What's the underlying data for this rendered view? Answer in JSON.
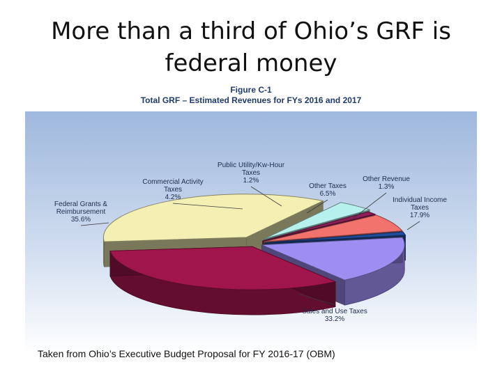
{
  "slide": {
    "title_line1": "More than a third of Ohio’s GRF is",
    "title_line2": "federal money",
    "caption": "Taken from Ohio’s Executive Budget Proposal for FY 2016-17 (OBM)"
  },
  "chart_data": {
    "type": "pie",
    "figure_label": "Figure C-1",
    "title": "Total GRF – Estimated Revenues for FYs 2016 and 2017",
    "unit": "%",
    "slices": [
      {
        "lines": [
          "Individual Income",
          "Taxes"
        ],
        "value": 17.9,
        "label": "17.9%",
        "color": "#9e8ef2"
      },
      {
        "lines": [
          "Sales and Use Taxes"
        ],
        "value": 33.2,
        "label": "33.2%",
        "color": "#a0154c"
      },
      {
        "lines": [
          "Federal Grants &",
          "Reimbursement"
        ],
        "value": 35.6,
        "label": "35.6%",
        "color": "#f4f0b4"
      },
      {
        "lines": [
          "Commercial Activity",
          "Taxes"
        ],
        "value": 4.2,
        "label": "4.2%",
        "color": "#b6f1ee"
      },
      {
        "lines": [
          "Public Utility/Kw-Hour",
          "Taxes"
        ],
        "value": 1.2,
        "label": "1.2%",
        "color": "#8d1e55"
      },
      {
        "lines": [
          "Other Taxes"
        ],
        "value": 6.5,
        "label": "6.5%",
        "color": "#f2736e"
      },
      {
        "lines": [
          "Other Revenue"
        ],
        "value": 1.3,
        "label": "1.3%",
        "color": "#1f4e9c"
      }
    ],
    "legend": "none (callout labels)"
  }
}
